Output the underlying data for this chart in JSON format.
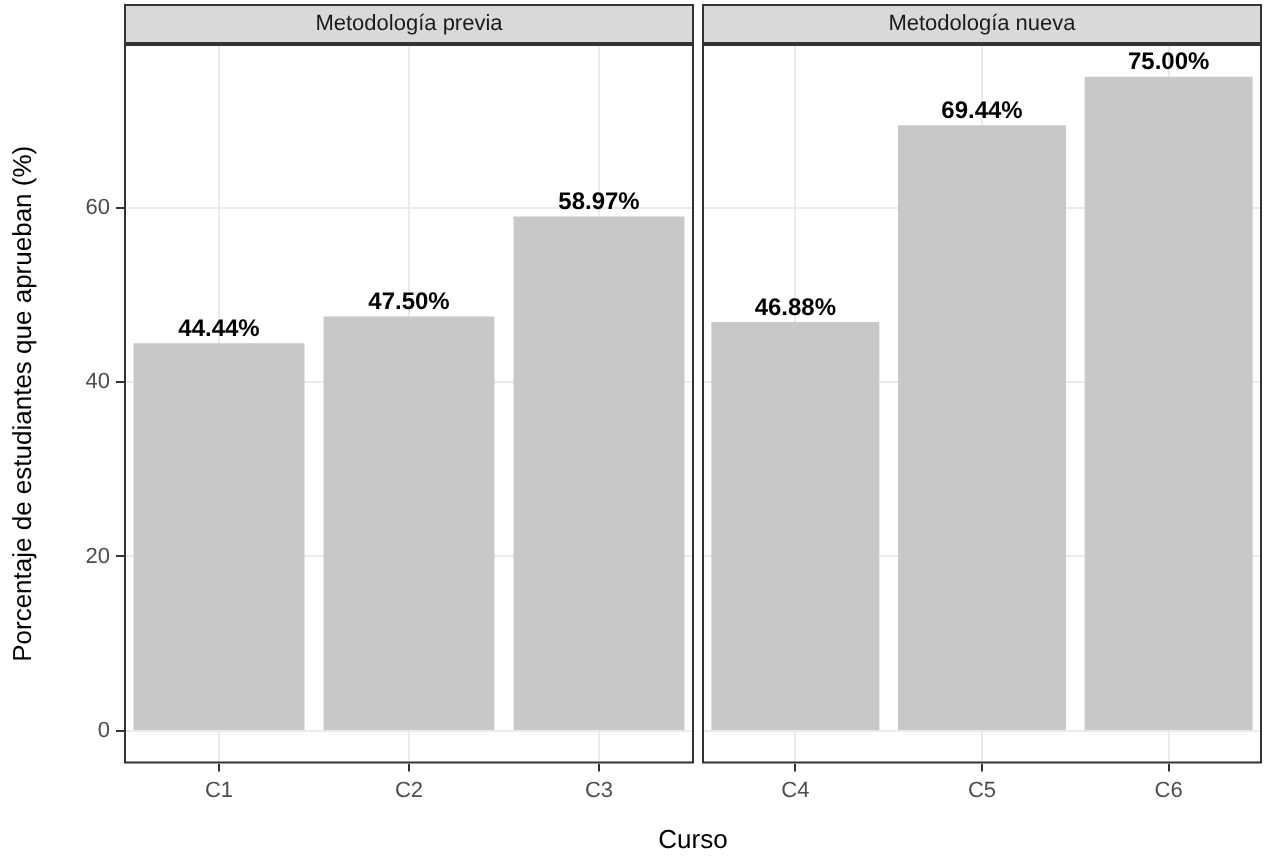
{
  "chart_data": [
    {
      "type": "bar",
      "title": "Metodología previa",
      "categories": [
        "C1",
        "C2",
        "C3"
      ],
      "values": [
        44.44,
        47.5,
        58.97
      ],
      "value_labels": [
        "44.44%",
        "47.50%",
        "58.97%"
      ],
      "color": "#c8c8c8",
      "ylim": [
        -3.75,
        78.75
      ],
      "yticks": [
        0,
        20,
        40,
        60
      ],
      "ylabel": "Porcentaje de estudiantes que aprueban (%)",
      "xlabel": "Curso",
      "grid": true
    },
    {
      "type": "bar",
      "title": "Metodología nueva",
      "categories": [
        "C4",
        "C5",
        "C6"
      ],
      "values": [
        46.88,
        69.44,
        75
      ],
      "value_labels": [
        "46.88%",
        "69.44%",
        "75.00%"
      ],
      "color": "#c8c8c8",
      "ylim": [
        -3.75,
        78.75
      ],
      "yticks": [
        0,
        20,
        40,
        60
      ],
      "grid": true,
      "tick_labels": "x"
    }
  ]
}
